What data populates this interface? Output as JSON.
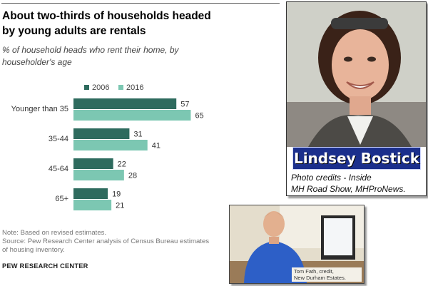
{
  "chart": {
    "title_line1": "About two-thirds of households headed",
    "title_line2": "by young adults are rentals",
    "subtitle_line1": "% of household heads who rent their home, by",
    "subtitle_line2": "householder's age",
    "note_line1": "Note: Based on revised estimates.",
    "note_line2": "Source: Pew Research Center analysis of Census Bureau estimates",
    "note_line3": "of housing inventory.",
    "source": "PEW RESEARCH CENTER"
  },
  "chart_data": {
    "type": "bar",
    "orientation": "horizontal",
    "categories": [
      "Younger than 35",
      "35-44",
      "45-64",
      "65+"
    ],
    "series": [
      {
        "name": "2006",
        "color": "#2e6b5e",
        "values": [
          57,
          31,
          22,
          19
        ]
      },
      {
        "name": "2016",
        "color": "#7cc7b2",
        "values": [
          65,
          41,
          28,
          21
        ]
      }
    ],
    "data_labels": true,
    "legend_placement": "top",
    "grid": false,
    "xlim": [
      0,
      100
    ]
  },
  "photo1": {
    "name": "Lindsey Bostick",
    "credit_line1": "Photo credits - Inside",
    "credit_line2": "MH Road Show, MHProNews."
  },
  "photo2": {
    "credit_line1": "Tom Fath, credit,",
    "credit_line2": "New Durham Estates."
  }
}
